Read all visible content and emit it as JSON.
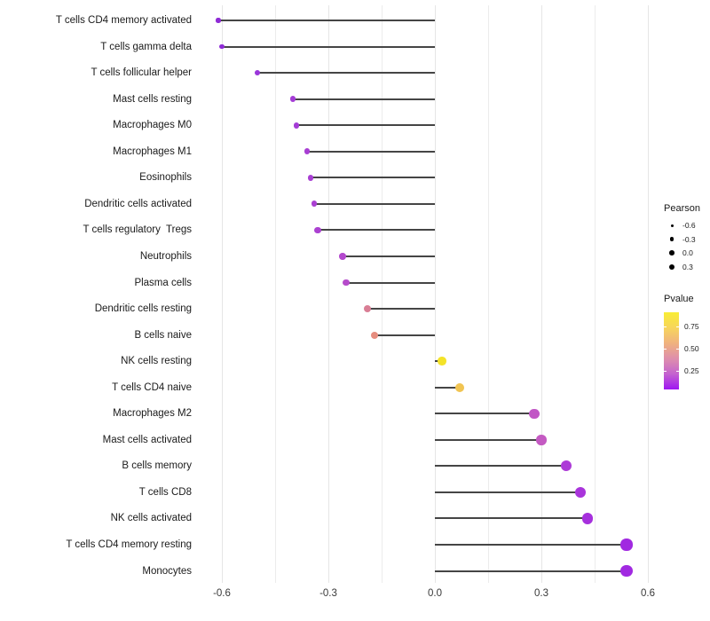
{
  "chart_data": {
    "type": "scatter",
    "variant": "lollipop",
    "title": "",
    "xlabel": "",
    "ylabel": "",
    "xlim": [
      -0.67,
      0.62
    ],
    "grid": "vertical-only",
    "legend_position": "right",
    "xticks": {
      "values": [
        -0.6,
        -0.3,
        0.0,
        0.3,
        0.6
      ],
      "labels": [
        "-0.6",
        "-0.3",
        "0.0",
        "0.3",
        "0.6"
      ]
    },
    "minor_gridlines": [
      -0.45,
      -0.15,
      0.15,
      0.45
    ],
    "points": [
      {
        "label": "T cells CD4 memory activated",
        "pearson": -0.61,
        "color": "#8F2BD6"
      },
      {
        "label": "T cells gamma delta",
        "pearson": -0.6,
        "color": "#8F2BD6"
      },
      {
        "label": "T cells follicular helper",
        "pearson": -0.5,
        "color": "#9A36DA"
      },
      {
        "label": "Mast cells resting",
        "pearson": -0.4,
        "color": "#A43CD6"
      },
      {
        "label": "Macrophages M0",
        "pearson": -0.39,
        "color": "#A43CD6"
      },
      {
        "label": "Macrophages M1",
        "pearson": -0.36,
        "color": "#A83ED3"
      },
      {
        "label": "Eosinophils",
        "pearson": -0.35,
        "color": "#A83ED3"
      },
      {
        "label": "Dendritic cells activated",
        "pearson": -0.34,
        "color": "#AA40D2"
      },
      {
        "label": "T cells regulatory  Tregs",
        "pearson": -0.33,
        "color": "#AB41D1"
      },
      {
        "label": "Neutrophils",
        "pearson": -0.26,
        "color": "#B348CD"
      },
      {
        "label": "Plasma cells",
        "pearson": -0.25,
        "color": "#B64BCB"
      },
      {
        "label": "Dendritic cells resting",
        "pearson": -0.19,
        "color": "#D97E95"
      },
      {
        "label": "B cells naive",
        "pearson": -0.17,
        "color": "#E68D7F"
      },
      {
        "label": "NK cells resting",
        "pearson": 0.02,
        "color": "#F4E328"
      },
      {
        "label": "T cells CD4 naive",
        "pearson": 0.07,
        "color": "#F1C452"
      },
      {
        "label": "Macrophages M2",
        "pearson": 0.28,
        "color": "#C156C5"
      },
      {
        "label": "Mast cells activated",
        "pearson": 0.3,
        "color": "#C45AC2"
      },
      {
        "label": "B cells memory",
        "pearson": 0.37,
        "color": "#AD3BD7"
      },
      {
        "label": "T cells CD8",
        "pearson": 0.41,
        "color": "#A934DB"
      },
      {
        "label": "NK cells activated",
        "pearson": 0.43,
        "color": "#A630DD"
      },
      {
        "label": "T cells CD4 memory resting",
        "pearson": 0.54,
        "color": "#A129E1"
      },
      {
        "label": "Monocytes",
        "pearson": 0.54,
        "color": "#A129E1"
      }
    ],
    "segment_color": "#454545",
    "legend_size": {
      "title": "Pearson",
      "entries": [
        {
          "label": "-0.6",
          "diameter": 3
        },
        {
          "label": "-0.3",
          "diameter": 4.6
        },
        {
          "label": "0.0",
          "diameter": 5.6
        },
        {
          "label": "0.3",
          "diameter": 6.6
        }
      ],
      "dot_color": "#000000"
    },
    "legend_color": {
      "title": "Pvalue",
      "tick_labels": [
        "0.75",
        "0.50",
        "0.25"
      ],
      "gradient_top_to_bottom": [
        "#F8ED35",
        "#F7D55C",
        "#F0B27E",
        "#DE8FAC",
        "#C463CF",
        "#9F16F2"
      ]
    }
  }
}
